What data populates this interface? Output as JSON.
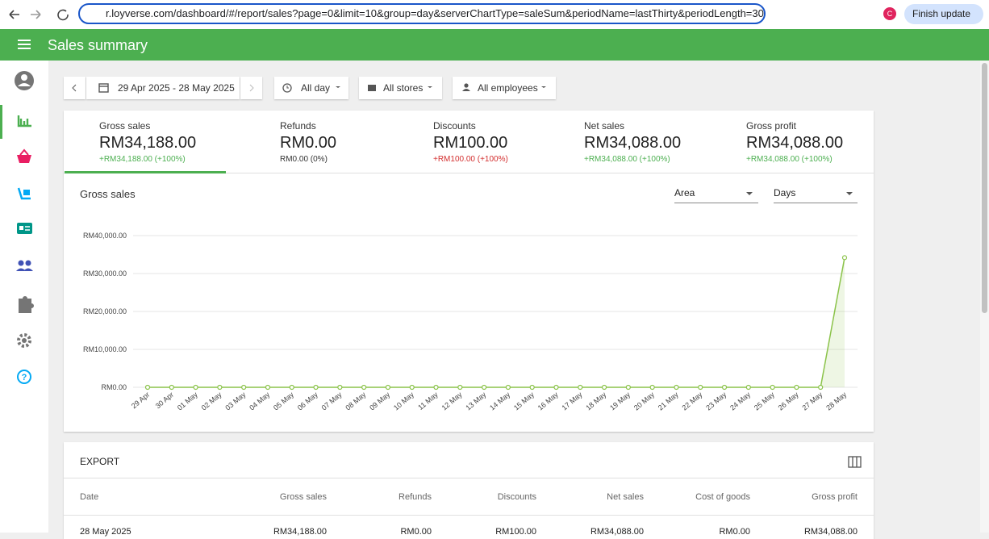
{
  "browser": {
    "url": "r.loyverse.com/dashboard/#/report/sales?page=0&limit=10&group=day&serverChartType=saleSum&periodName=lastThirty&periodLength=30d&...",
    "avatar": "C",
    "update_button": "Finish update"
  },
  "header": {
    "title": "Sales summary"
  },
  "filters": {
    "date_range": "29 Apr 2025 - 28 May 2025",
    "time": "All day",
    "stores": "All stores",
    "employees": "All employees"
  },
  "summary": [
    {
      "label": "Gross sales",
      "value": "RM34,188.00",
      "change": "+RM34,188.00 (+100%)",
      "change_color": "#4caf50"
    },
    {
      "label": "Refunds",
      "value": "RM0.00",
      "change": "RM0.00 (0%)",
      "change_color": "#333333"
    },
    {
      "label": "Discounts",
      "value": "RM100.00",
      "change": "+RM100.00 (+100%)",
      "change_color": "#d32f2f"
    },
    {
      "label": "Net sales",
      "value": "RM34,088.00",
      "change": "+RM34,088.00 (+100%)",
      "change_color": "#4caf50"
    },
    {
      "label": "Gross profit",
      "value": "RM34,088.00",
      "change": "+RM34,088.00 (+100%)",
      "change_color": "#4caf50"
    }
  ],
  "chart_data": {
    "type": "area",
    "title": "Gross sales",
    "chart_type_select": "Area",
    "group_select": "Days",
    "color": "#8bc34a",
    "categories": [
      "29 Apr",
      "30 Apr",
      "01 May",
      "02 May",
      "03 May",
      "04 May",
      "05 May",
      "06 May",
      "07 May",
      "08 May",
      "09 May",
      "10 May",
      "11 May",
      "12 May",
      "13 May",
      "14 May",
      "15 May",
      "16 May",
      "17 May",
      "18 May",
      "19 May",
      "20 May",
      "21 May",
      "22 May",
      "23 May",
      "24 May",
      "25 May",
      "26 May",
      "27 May",
      "28 May"
    ],
    "values": [
      0,
      0,
      0,
      0,
      0,
      0,
      0,
      0,
      0,
      0,
      0,
      0,
      0,
      0,
      0,
      0,
      0,
      0,
      0,
      0,
      0,
      0,
      0,
      0,
      0,
      0,
      0,
      0,
      0,
      34188
    ],
    "ylim": [
      0,
      40000
    ],
    "yticks": [
      {
        "value": 0,
        "label": "RM0.00"
      },
      {
        "value": 10000,
        "label": "RM10,000.00"
      },
      {
        "value": 20000,
        "label": "RM20,000.00"
      },
      {
        "value": 30000,
        "label": "RM30,000.00"
      },
      {
        "value": 40000,
        "label": "RM40,000.00"
      }
    ],
    "grid": true
  },
  "table": {
    "title": "EXPORT",
    "columns": [
      "Date",
      "Gross sales",
      "Refunds",
      "Discounts",
      "Net sales",
      "Cost of goods",
      "Gross profit"
    ],
    "rows": [
      [
        "28 May 2025",
        "RM34,188.00",
        "RM0.00",
        "RM100.00",
        "RM34,088.00",
        "RM0.00",
        "RM34,088.00"
      ]
    ]
  }
}
